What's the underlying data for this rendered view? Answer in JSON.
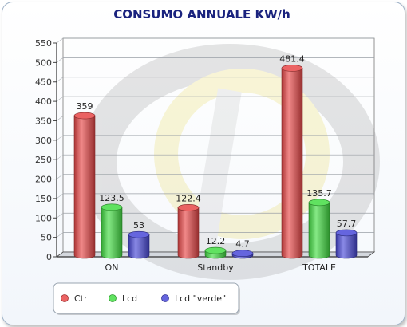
{
  "chart_data": {
    "type": "bar",
    "title": "CONSUMO ANNUALE KW/h",
    "categories": [
      "ON",
      "Standby",
      "TOTALE"
    ],
    "series": [
      {
        "name": "Ctr",
        "values": [
          359,
          122.4,
          481.4
        ],
        "color": "#e84848"
      },
      {
        "name": "Lcd",
        "values": [
          123.5,
          12.2,
          135.7
        ],
        "color": "#44dd44"
      },
      {
        "name": "Lcd \"verde\"",
        "values": [
          53,
          4.7,
          57.7
        ],
        "color": "#4a4ad8"
      }
    ],
    "value_labels": [
      [
        "359",
        "122.4",
        "481.4"
      ],
      [
        "123.5",
        "12.2",
        "135.7"
      ],
      [
        "53",
        "4.7",
        "57.7"
      ]
    ],
    "ylim": [
      0,
      550
    ],
    "yticks": [
      0,
      50,
      100,
      150,
      200,
      250,
      300,
      350,
      400,
      450,
      500,
      550
    ],
    "grid": true,
    "legend_position": "bottom-left"
  }
}
